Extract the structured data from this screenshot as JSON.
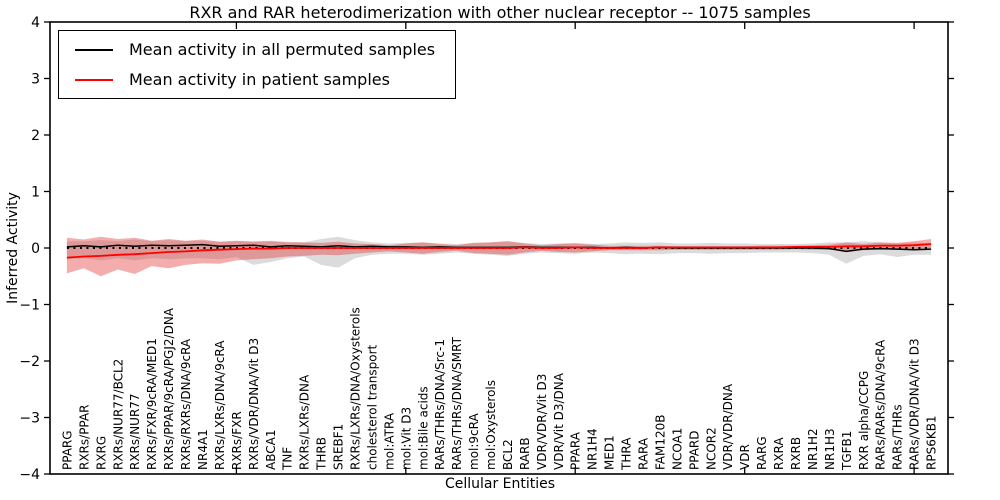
{
  "title": "RXR and RAR heterodimerization with other nuclear receptor -- 1075 samples",
  "legend": {
    "entries": [
      {
        "label": "Mean activity in all permuted samples",
        "color": "#000000"
      },
      {
        "label": "Mean activity in patient samples",
        "color": "#ff0000"
      }
    ]
  },
  "axes": {
    "ylabel": "Inferred Activity",
    "xlabel": "Cellular Entities",
    "yticks": [
      4,
      3,
      2,
      1,
      0,
      -1,
      -2,
      -3,
      -4
    ],
    "ylim": [
      -4,
      4
    ],
    "grid": false,
    "legend_position": "upper-left"
  },
  "chart_data": {
    "type": "line",
    "title": "RXR and RAR heterodimerization with other nuclear receptor -- 1075 samples",
    "xlabel": "Cellular Entities",
    "ylabel": "Inferred Activity",
    "ylim": [
      -4,
      4
    ],
    "reference_line": 0,
    "categories": [
      "PPARG",
      "RXRs/PPAR",
      "RXRG",
      "RXRs/NUR77/BCL2",
      "RXRs/NUR77",
      "RXRs/FXR/9cRA/MED1",
      "RXRs/PPAR/9cRA/PGJ2/DNA",
      "RXRs/RXRs/DNA/9cRA",
      "NR4A1",
      "RXRs/LXRs/DNA/9cRA",
      "RXRs/FXR",
      "RXRs/VDR/DNA/Vit D3",
      "ABCA1",
      "TNF",
      "RXRs/LXRs/DNA",
      "THRB",
      "SREBF1",
      "RXRs/LXRs/DNA/Oxysterols",
      "cholesterol transport",
      "mol:ATRA",
      "mol:Vit D3",
      "mol:Bile acids",
      "RARs/THRs/DNA/Src-1",
      "RARs/THRs/DNA/SMRT",
      "mol:9cRA",
      "mol:Oxysterols",
      "BCL2",
      "RARB",
      "VDR/VDR/Vit D3",
      "VDR/Vit D3/DNA",
      "PPARA",
      "NR1H4",
      "MED1",
      "THRA",
      "RARA",
      "FAM120B",
      "NCOA1",
      "PPARD",
      "NCOR2",
      "VDR/VDR/DNA",
      "VDR",
      "RARG",
      "RXRA",
      "RXRB",
      "NR1H2",
      "NR1H3",
      "TGFB1",
      "RXR alpha/CCPG",
      "RARs/RARs/DNA/9cRA",
      "RARs/THRs",
      "RARs/VDR/DNA/Vit D3",
      "RPS6KB1"
    ],
    "series": [
      {
        "name": "Mean activity in all permuted samples",
        "color": "#000000",
        "band_color": "rgba(125,125,125,0.28)",
        "values": [
          0.02,
          0.04,
          0.02,
          0.05,
          0.03,
          0.05,
          0.04,
          0.05,
          0.06,
          0.03,
          0.04,
          0.05,
          0.02,
          0.04,
          0.03,
          0.02,
          0.04,
          0.02,
          0.03,
          0.02,
          0.02,
          0.01,
          0.02,
          0.01,
          0.01,
          0.01,
          0.01,
          0.02,
          0.01,
          0.01,
          0.01,
          0.01,
          0,
          0.01,
          0,
          0.01,
          0,
          0,
          0,
          0,
          0,
          0,
          0,
          0,
          0,
          -0.01,
          -0.06,
          -0.02,
          -0.01,
          -0.02,
          -0.03,
          -0.02
        ],
        "band_upper": [
          0.12,
          0.12,
          0.14,
          0.12,
          0.15,
          0.12,
          0.14,
          0.12,
          0.13,
          0.11,
          0.12,
          0.12,
          0.13,
          0.11,
          0.1,
          0.16,
          0.2,
          0.14,
          0.1,
          0.08,
          0.09,
          0.1,
          0.08,
          0.07,
          0.09,
          0.1,
          0.12,
          0.09,
          0.07,
          0.08,
          0.09,
          0.07,
          0.08,
          0.1,
          0.09,
          0.1,
          0.08,
          0.08,
          0.09,
          0.08,
          0.08,
          0.07,
          0.07,
          0.07,
          0.08,
          0.1,
          0.1,
          0.12,
          0.1,
          0.08,
          0.1,
          0.08
        ],
        "band_lower": [
          -0.2,
          -0.18,
          -0.22,
          -0.18,
          -0.22,
          -0.18,
          -0.2,
          -0.18,
          -0.18,
          -0.2,
          -0.16,
          -0.3,
          -0.25,
          -0.18,
          -0.15,
          -0.3,
          -0.35,
          -0.18,
          -0.12,
          -0.1,
          -0.1,
          -0.12,
          -0.1,
          -0.08,
          -0.1,
          -0.12,
          -0.14,
          -0.1,
          -0.08,
          -0.09,
          -0.1,
          -0.08,
          -0.09,
          -0.11,
          -0.1,
          -0.11,
          -0.09,
          -0.09,
          -0.1,
          -0.09,
          -0.09,
          -0.08,
          -0.08,
          -0.08,
          -0.09,
          -0.12,
          -0.28,
          -0.14,
          -0.11,
          -0.16,
          -0.12,
          -0.12
        ]
      },
      {
        "name": "Mean activity in patient samples",
        "color": "#ff0000",
        "band_color": "rgba(228,60,60,0.42)",
        "values": [
          -0.17,
          -0.15,
          -0.14,
          -0.12,
          -0.11,
          -0.09,
          -0.07,
          -0.06,
          -0.04,
          -0.03,
          -0.02,
          -0.01,
          -0.01,
          0,
          0,
          0,
          0,
          0,
          0,
          0,
          0,
          0,
          0,
          0,
          0,
          0,
          0,
          0.01,
          0,
          0,
          0.01,
          0,
          0,
          0,
          0,
          0.01,
          0.01,
          0.01,
          0.01,
          0.01,
          0.01,
          0.01,
          0.01,
          0.02,
          0.02,
          0.02,
          0.03,
          0.03,
          0.04,
          0.04,
          0.05,
          0.07
        ],
        "band_upper": [
          0.18,
          0.15,
          0.2,
          0.16,
          0.18,
          0.13,
          0.16,
          0.13,
          0.15,
          0.11,
          0.13,
          0.11,
          0.12,
          0.1,
          0.1,
          0.09,
          0.11,
          0.08,
          0.07,
          0.05,
          0.08,
          0.1,
          0.07,
          0.05,
          0.09,
          0.1,
          0.12,
          0.08,
          0.05,
          0.07,
          0.08,
          0.06,
          0.04,
          0.04,
          0.04,
          0.04,
          0.03,
          0.03,
          0.03,
          0.03,
          0.03,
          0.04,
          0.04,
          0.04,
          0.05,
          0.06,
          0.1,
          0.07,
          0.1,
          0.09,
          0.12,
          0.16
        ],
        "band_lower": [
          -0.45,
          -0.36,
          -0.5,
          -0.38,
          -0.46,
          -0.32,
          -0.36,
          -0.3,
          -0.27,
          -0.28,
          -0.22,
          -0.2,
          -0.18,
          -0.15,
          -0.14,
          -0.12,
          -0.13,
          -0.1,
          -0.08,
          -0.06,
          -0.08,
          -0.1,
          -0.07,
          -0.05,
          -0.09,
          -0.1,
          -0.12,
          -0.08,
          -0.05,
          -0.07,
          -0.08,
          -0.06,
          -0.04,
          -0.04,
          -0.04,
          -0.04,
          -0.03,
          -0.03,
          -0.03,
          -0.03,
          -0.03,
          -0.03,
          -0.03,
          -0.02,
          -0.03,
          -0.03,
          -0.05,
          -0.04,
          -0.03,
          -0.03,
          -0.02,
          0.0
        ]
      }
    ]
  }
}
